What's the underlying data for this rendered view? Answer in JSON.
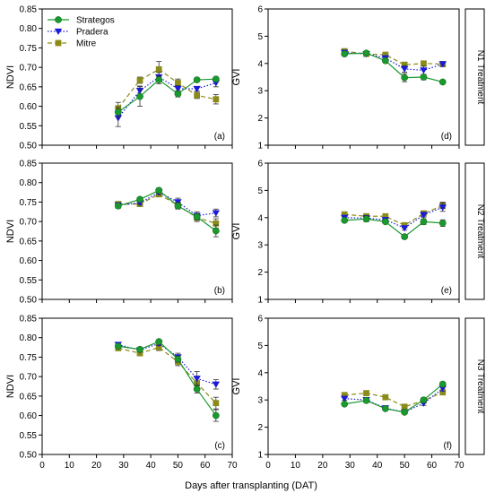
{
  "figure": {
    "xlabel": "Days after transplanting (DAT)",
    "row_labels": [
      "N1 Treatment",
      "N2 Treatment",
      "N3 Treatment"
    ]
  },
  "series_styles": [
    {
      "name": "Strategos",
      "color": "#1a9a2e",
      "marker": "circle",
      "dash": "none"
    },
    {
      "name": "Pradera",
      "color": "#1a1ad8",
      "marker": "triangle-down",
      "dash": "dot"
    },
    {
      "name": "Mitre",
      "color": "#8b8b1a",
      "marker": "square",
      "dash": "dash"
    }
  ],
  "chart_data": [
    {
      "type": "line",
      "panel": "(a)",
      "ylabel": "NDVI",
      "xlim": [
        0,
        70
      ],
      "ylim": [
        0.5,
        0.85
      ],
      "xticks": [
        0,
        10,
        20,
        30,
        40,
        50,
        60,
        70
      ],
      "yticks": [
        "0.50",
        "0.55",
        "0.60",
        "0.65",
        "0.70",
        "0.75",
        "0.80",
        "0.85"
      ],
      "x": [
        28,
        36,
        43,
        50,
        57,
        64
      ],
      "legend": "top-left",
      "series": [
        {
          "name": "Strategos",
          "values": [
            0.585,
            0.625,
            0.668,
            0.632,
            0.668,
            0.67
          ],
          "errors": [
            0.012,
            0.025,
            0.01,
            0.008,
            0.005,
            0.005
          ]
        },
        {
          "name": "Pradera",
          "values": [
            0.57,
            0.64,
            0.675,
            0.645,
            0.645,
            0.66
          ],
          "errors": [
            0.022,
            0.012,
            0.012,
            0.008,
            0.006,
            0.01
          ]
        },
        {
          "name": "Mitre",
          "values": [
            0.595,
            0.667,
            0.695,
            0.66,
            0.628,
            0.618
          ],
          "errors": [
            0.015,
            0.008,
            0.02,
            0.01,
            0.008,
            0.012
          ]
        }
      ]
    },
    {
      "type": "line",
      "panel": "(d)",
      "ylabel": "GVI",
      "xlim": [
        0,
        70
      ],
      "ylim": [
        1,
        6
      ],
      "xticks": [
        0,
        10,
        20,
        30,
        40,
        50,
        60,
        70
      ],
      "yticks": [
        "1",
        "2",
        "3",
        "4",
        "5",
        "6"
      ],
      "x": [
        28,
        36,
        43,
        50,
        57,
        64
      ],
      "series": [
        {
          "name": "Strategos",
          "values": [
            4.35,
            4.38,
            4.1,
            3.48,
            3.5,
            3.32
          ],
          "errors": [
            0.08,
            0.05,
            0.08,
            0.15,
            0.1,
            0.05
          ]
        },
        {
          "name": "Pradera",
          "values": [
            4.4,
            4.35,
            4.2,
            3.8,
            3.75,
            3.98
          ],
          "errors": [
            0.08,
            0.05,
            0.08,
            0.12,
            0.15,
            0.08
          ]
        },
        {
          "name": "Mitre",
          "values": [
            4.45,
            4.35,
            4.32,
            3.95,
            4.0,
            3.98
          ],
          "errors": [
            0.08,
            0.05,
            0.08,
            0.1,
            0.08,
            0.1
          ]
        }
      ]
    },
    {
      "type": "line",
      "panel": "(b)",
      "ylabel": "NDVI",
      "xlim": [
        0,
        70
      ],
      "ylim": [
        0.5,
        0.85
      ],
      "xticks": [
        0,
        10,
        20,
        30,
        40,
        50,
        60,
        70
      ],
      "yticks": [
        "0.50",
        "0.55",
        "0.60",
        "0.65",
        "0.70",
        "0.75",
        "0.80",
        "0.85"
      ],
      "x": [
        28,
        36,
        43,
        50,
        57,
        64
      ],
      "series": [
        {
          "name": "Strategos",
          "values": [
            0.74,
            0.757,
            0.78,
            0.74,
            0.712,
            0.676
          ],
          "errors": [
            0.006,
            0.005,
            0.006,
            0.008,
            0.008,
            0.015
          ]
        },
        {
          "name": "Pradera",
          "values": [
            0.742,
            0.748,
            0.775,
            0.75,
            0.715,
            0.722
          ],
          "errors": [
            0.006,
            0.005,
            0.006,
            0.01,
            0.01,
            0.01
          ]
        },
        {
          "name": "Mitre",
          "values": [
            0.745,
            0.745,
            0.77,
            0.742,
            0.71,
            0.695
          ],
          "errors": [
            0.006,
            0.005,
            0.006,
            0.008,
            0.01,
            0.012
          ]
        }
      ]
    },
    {
      "type": "line",
      "panel": "(e)",
      "ylabel": "GVI",
      "xlim": [
        0,
        70
      ],
      "ylim": [
        1,
        6
      ],
      "xticks": [
        0,
        10,
        20,
        30,
        40,
        50,
        60,
        70
      ],
      "yticks": [
        "1",
        "2",
        "3",
        "4",
        "5",
        "6"
      ],
      "x": [
        28,
        36,
        43,
        50,
        57,
        64
      ],
      "series": [
        {
          "name": "Strategos",
          "values": [
            3.9,
            3.95,
            3.85,
            3.3,
            3.85,
            3.8
          ],
          "errors": [
            0.06,
            0.1,
            0.06,
            0.08,
            0.1,
            0.12
          ]
        },
        {
          "name": "Pradera",
          "values": [
            4.0,
            3.98,
            3.92,
            3.62,
            4.1,
            4.38
          ],
          "errors": [
            0.06,
            0.1,
            0.06,
            0.08,
            0.1,
            0.15
          ]
        },
        {
          "name": "Mitre",
          "values": [
            4.12,
            4.05,
            4.05,
            3.72,
            4.15,
            4.45
          ],
          "errors": [
            0.06,
            0.08,
            0.06,
            0.08,
            0.1,
            0.12
          ]
        }
      ]
    },
    {
      "type": "line",
      "panel": "(c)",
      "ylabel": "NDVI",
      "xlim": [
        0,
        70
      ],
      "ylim": [
        0.5,
        0.85
      ],
      "xticks": [
        0,
        10,
        20,
        30,
        40,
        50,
        60,
        70
      ],
      "yticks": [
        "0.50",
        "0.55",
        "0.60",
        "0.65",
        "0.70",
        "0.75",
        "0.80",
        "0.85"
      ],
      "x": [
        28,
        36,
        43,
        50,
        57,
        64
      ],
      "series": [
        {
          "name": "Strategos",
          "values": [
            0.778,
            0.77,
            0.79,
            0.745,
            0.668,
            0.6
          ],
          "errors": [
            0.005,
            0.004,
            0.005,
            0.008,
            0.01,
            0.015
          ]
        },
        {
          "name": "Pradera",
          "values": [
            0.782,
            0.768,
            0.785,
            0.75,
            0.695,
            0.68
          ],
          "errors": [
            0.005,
            0.004,
            0.005,
            0.01,
            0.018,
            0.012
          ]
        },
        {
          "name": "Mitre",
          "values": [
            0.773,
            0.76,
            0.775,
            0.738,
            0.683,
            0.632
          ],
          "errors": [
            0.005,
            0.004,
            0.008,
            0.01,
            0.015,
            0.015
          ]
        }
      ]
    },
    {
      "type": "line",
      "panel": "(f)",
      "ylabel": "GVI",
      "xlim": [
        0,
        70
      ],
      "ylim": [
        1,
        6
      ],
      "xticks": [
        0,
        10,
        20,
        30,
        40,
        50,
        60,
        70
      ],
      "yticks": [
        "1",
        "2",
        "3",
        "4",
        "5",
        "6"
      ],
      "x": [
        28,
        36,
        43,
        50,
        57,
        64
      ],
      "series": [
        {
          "name": "Strategos",
          "values": [
            2.85,
            2.98,
            2.68,
            2.55,
            3.0,
            3.58
          ],
          "errors": [
            0.06,
            0.08,
            0.05,
            0.06,
            0.06,
            0.08
          ]
        },
        {
          "name": "Pradera",
          "values": [
            3.05,
            3.0,
            2.7,
            2.55,
            2.88,
            3.42
          ],
          "errors": [
            0.06,
            0.08,
            0.05,
            0.06,
            0.08,
            0.1
          ]
        },
        {
          "name": "Mitre",
          "values": [
            3.18,
            3.25,
            3.1,
            2.75,
            2.98,
            3.28
          ],
          "errors": [
            0.06,
            0.08,
            0.06,
            0.06,
            0.06,
            0.08
          ]
        }
      ]
    }
  ]
}
